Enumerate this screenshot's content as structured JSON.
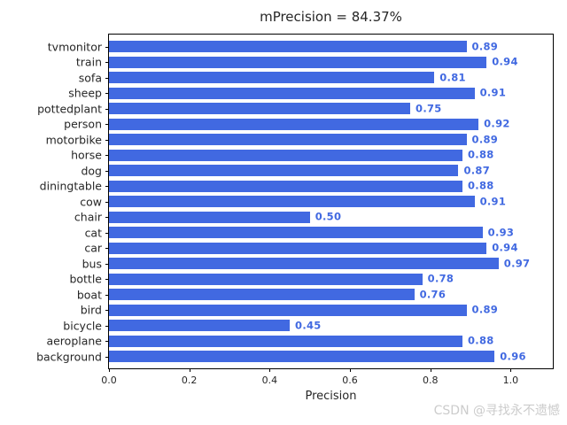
{
  "title": "mPrecision = 84.37%",
  "watermark": "CSDN @寻找永不遗憾",
  "chart_data": {
    "type": "bar",
    "orientation": "horizontal",
    "title": "mPrecision = 84.37%",
    "xlabel": "Precision",
    "ylabel": "",
    "categories": [
      "tvmonitor",
      "train",
      "sofa",
      "sheep",
      "pottedplant",
      "person",
      "motorbike",
      "horse",
      "dog",
      "diningtable",
      "cow",
      "chair",
      "cat",
      "car",
      "bus",
      "bottle",
      "boat",
      "bird",
      "bicycle",
      "aeroplane",
      "background"
    ],
    "values": [
      0.89,
      0.94,
      0.81,
      0.91,
      0.75,
      0.92,
      0.89,
      0.88,
      0.87,
      0.88,
      0.91,
      0.5,
      0.93,
      0.94,
      0.97,
      0.78,
      0.76,
      0.89,
      0.45,
      0.88,
      0.96
    ],
    "value_label_format": "2-decimals",
    "xticks": [
      "0.0",
      "0.2",
      "0.4",
      "0.6",
      "0.8",
      "1.0"
    ],
    "xtick_values": [
      0.0,
      0.2,
      0.4,
      0.6,
      0.8,
      1.0
    ],
    "xlim": [
      0,
      1.105
    ],
    "bar_color": "#4169e1",
    "value_label_color": "#4169e1",
    "grid": false,
    "legend_position": "none",
    "mean_precision_percent": 84.37
  }
}
